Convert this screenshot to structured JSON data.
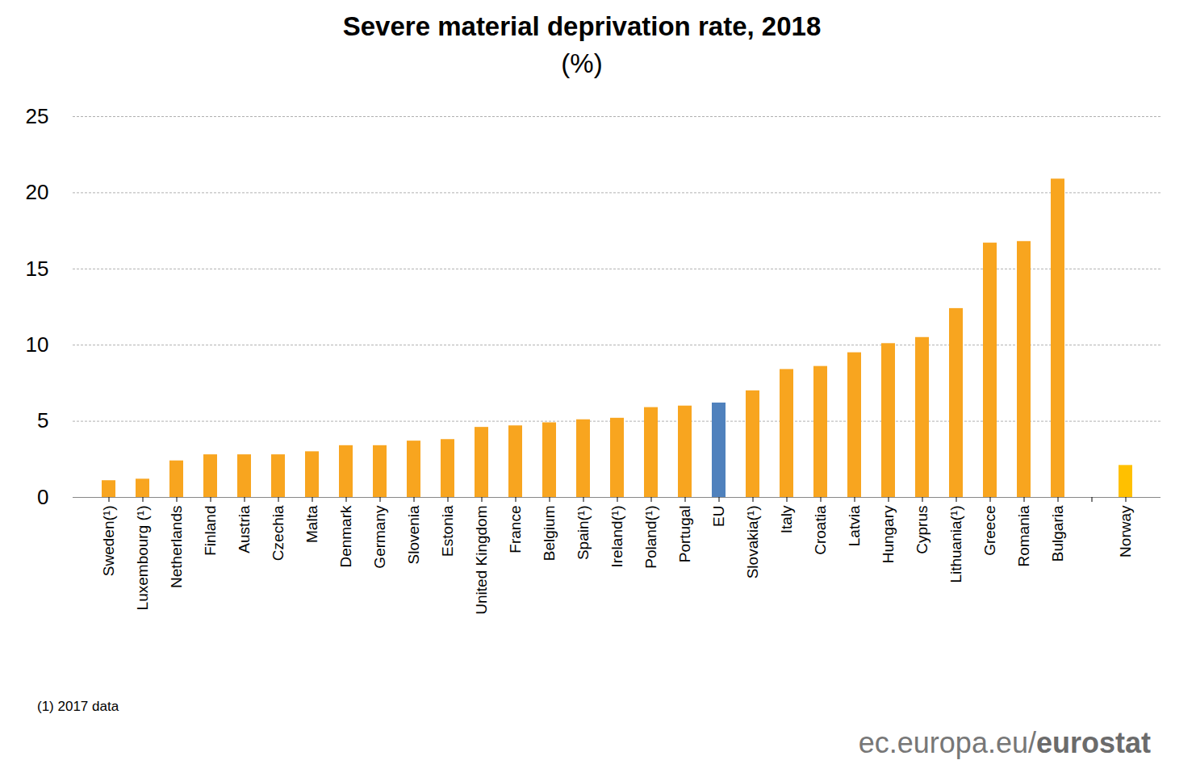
{
  "chart_data": {
    "type": "bar",
    "title": "Severe material deprivation rate, 2018",
    "subtitle": "(%)",
    "categories": [
      "Sweden(¹)",
      "Luxembourg (¹)",
      "Netherlands",
      "Finland",
      "Austria",
      "Czechia",
      "Malta",
      "Denmark",
      "Germany",
      "Slovenia",
      "Estonia",
      "United Kingdom",
      "France",
      "Belgium",
      "Spain(¹)",
      "Ireland(¹)",
      "Poland(¹)",
      "Portugal",
      "EU",
      "Slovakia(¹)",
      "Italy",
      "Croatia",
      "Latvia",
      "Hungary",
      "Cyprus",
      "Lithuania(¹)",
      "Greece",
      "Romania",
      "Bulgaria",
      null,
      "Norway"
    ],
    "values": [
      1.1,
      1.2,
      2.4,
      2.8,
      2.8,
      2.8,
      3.0,
      3.4,
      3.4,
      3.7,
      3.8,
      4.6,
      4.7,
      4.9,
      5.1,
      5.2,
      5.9,
      6.0,
      6.2,
      7.0,
      8.4,
      8.6,
      9.5,
      10.1,
      10.5,
      12.4,
      16.7,
      16.8,
      20.9,
      null,
      2.1
    ],
    "colors": [
      "#f8a51f",
      "#f8a51f",
      "#f8a51f",
      "#f8a51f",
      "#f8a51f",
      "#f8a51f",
      "#f8a51f",
      "#f8a51f",
      "#f8a51f",
      "#f8a51f",
      "#f8a51f",
      "#f8a51f",
      "#f8a51f",
      "#f8a51f",
      "#f8a51f",
      "#f8a51f",
      "#f8a51f",
      "#f8a51f",
      "#4f81bd",
      "#f8a51f",
      "#f8a51f",
      "#f8a51f",
      "#f8a51f",
      "#f8a51f",
      "#f8a51f",
      "#f8a51f",
      "#f8a51f",
      "#f8a51f",
      "#f8a51f",
      null,
      "#ffc000"
    ],
    "ylim": [
      0,
      25
    ],
    "yticks": [
      0,
      5,
      10,
      15,
      20,
      25
    ],
    "grid": true,
    "footnote": "(1) 2017 data",
    "source": "ec.europa.eu/eurostat"
  }
}
